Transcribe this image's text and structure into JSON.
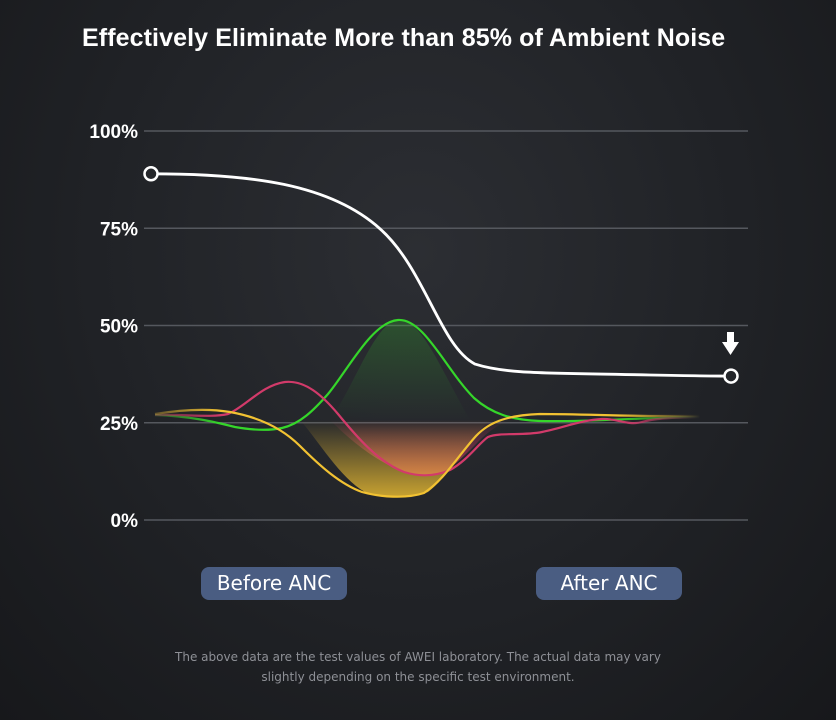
{
  "chart_data": {
    "type": "line",
    "title": "Effectively Eliminate More than 85% of Ambient Noise",
    "xlabel": "",
    "ylabel": "",
    "ylim": [
      0,
      100
    ],
    "y_ticks": [
      "100%",
      "75%",
      "50%",
      "25%",
      "0%"
    ],
    "x_labels": [
      "Before ANC",
      "After ANC"
    ],
    "series": [
      {
        "name": "ambient-noise-level",
        "color": "#ffffff",
        "values": [
          89,
          37
        ]
      },
      {
        "name": "green-waveform",
        "color": "#35d62a"
      },
      {
        "name": "pink-waveform",
        "color": "#d23a6a"
      },
      {
        "name": "yellow-waveform",
        "color": "#f2c232"
      }
    ],
    "arrow_marker": "down-arrow-icon"
  },
  "footnote": {
    "line1": "The above data are the test values of AWEI laboratory. The actual data may vary",
    "line2": "slightly depending on the specific test environment."
  }
}
